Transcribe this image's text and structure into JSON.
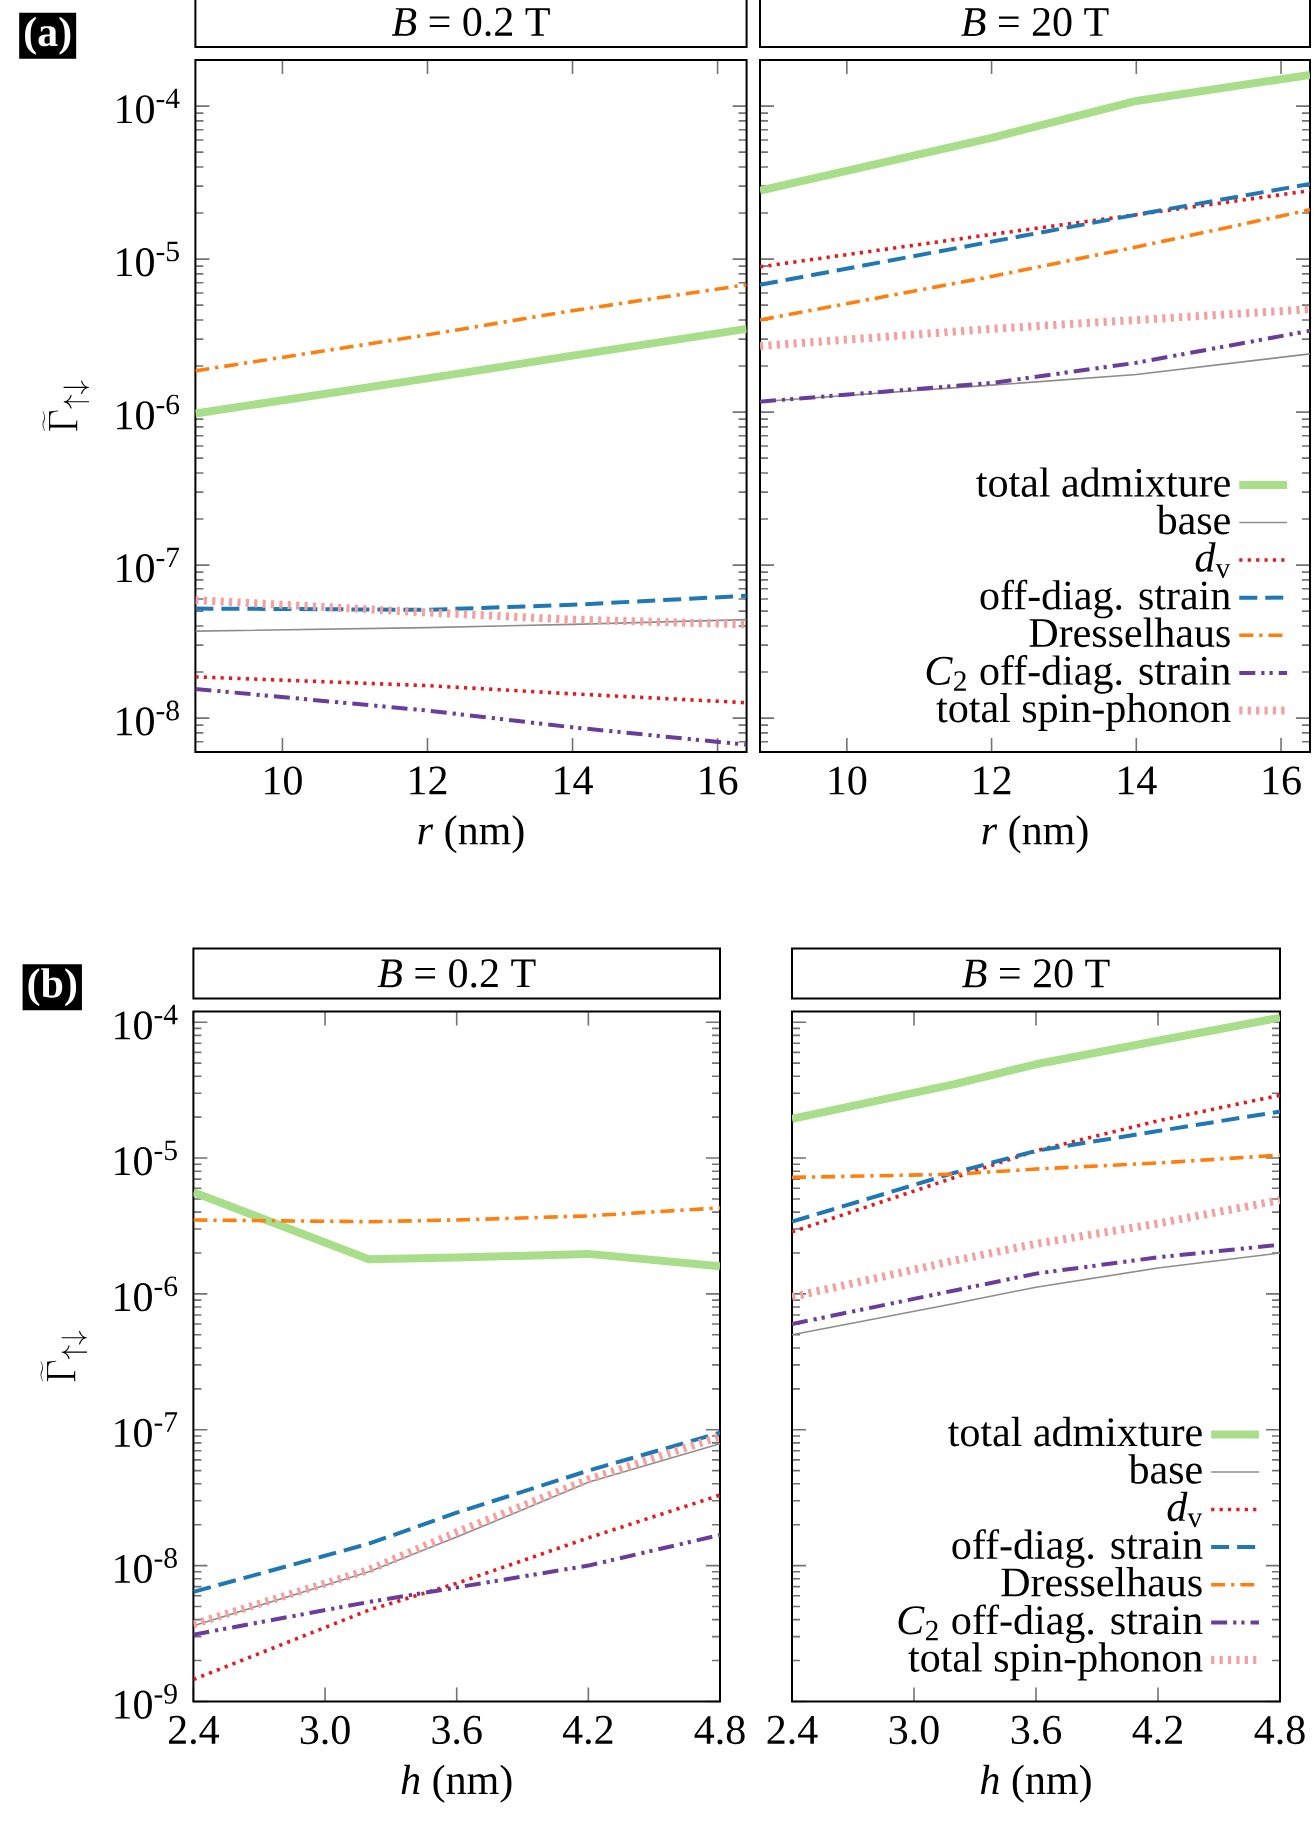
{
  "chart_data": [
    {
      "type": "line",
      "title": "*B* = 0.2 T",
      "xlabel": "*r* (nm)",
      "ylabel": "\\widetilde{\\Gamma}_{\\uparrow\\downarrow}",
      "annotations": [
        "(a)"
      ],
      "log": "y",
      "xlim": [
        8.8,
        16.4
      ],
      "ylim": [
        6e-09,
        0.0002
      ],
      "xticks": [
        10,
        12,
        14,
        16
      ],
      "yticks": [
        {
          "value": 0.0001,
          "label": "10$^{-4}$"
        },
        {
          "value": 1e-05,
          "label": "10$^{-5}$"
        },
        {
          "value": 1e-06,
          "label": "10$^{-6}$"
        },
        {
          "value": 1e-07,
          "label": "10$^{-7}$"
        },
        {
          "value": 1e-08,
          "label": "10$^{-8}$"
        }
      ],
      "x": [
        8.8,
        12,
        14,
        16.4
      ],
      "series": [
        {
          "color": "#a8dd8a",
          "line_style": "solid",
          "values": [
            9.8e-07,
            1.66e-06,
            2.34e-06,
            3.5e-06
          ]
        },
        {
          "color": "#8c8c8c",
          "line_style": "solid",
          "values": [
            3.7e-08,
            3.9e-08,
            4.1e-08,
            4.4e-08
          ]
        },
        {
          "color": "#e41a1c",
          "line_style": "dotted",
          "values": [
            1.86e-08,
            1.63e-08,
            1.44e-08,
            1.26e-08
          ]
        },
        {
          "color": "#1f78b4",
          "line_style": "dashed",
          "values": [
            5.2e-08,
            5.1e-08,
            5.5e-08,
            6.3e-08
          ]
        },
        {
          "color": "#ff7f0e",
          "line_style": "dashdot",
          "values": [
            1.86e-06,
            3.2e-06,
            4.6e-06,
            6.8e-06
          ]
        },
        {
          "color": "#6a3d9a",
          "line_style": "dashdotdot",
          "values": [
            1.55e-08,
            1.12e-08,
            8.7e-09,
            6.7e-09
          ]
        },
        {
          "color": "#f5a0a0",
          "line_style": "dotted",
          "values": [
            5.9e-08,
            4.9e-08,
            4.4e-08,
            4.1e-08
          ]
        }
      ]
    },
    {
      "type": "line",
      "title": "*B* = 20 T",
      "xlabel": "*r* (nm)",
      "log": "y",
      "tick_labels": "x",
      "legend": "bottom right",
      "xlim": [
        8.8,
        16.4
      ],
      "ylim": [
        6e-09,
        0.0002
      ],
      "xticks": [
        10,
        12,
        14,
        16
      ],
      "yticks": [
        {
          "value": 0.0001,
          "label": null
        },
        {
          "value": 1e-05,
          "label": null
        },
        {
          "value": 1e-06,
          "label": null
        },
        {
          "value": 1e-07,
          "label": null
        },
        {
          "value": 1e-08,
          "label": null
        }
      ],
      "x": [
        8.8,
        12,
        14,
        16.4
      ],
      "series": [
        {
          "name": "total admixture",
          "color": "#a8dd8a",
          "line_style": "solid",
          "values": [
            2.8e-05,
            6.2e-05,
            0.000108,
            0.00016
          ]
        },
        {
          "name": "base",
          "color": "#8c8c8c",
          "line_style": "solid",
          "values": [
            1.17e-06,
            1.5e-06,
            1.76e-06,
            2.4e-06
          ]
        },
        {
          "name": "*d*$_{v}$",
          "color": "#e41a1c",
          "line_style": "dotted",
          "values": [
            8.9e-06,
            1.45e-05,
            1.95e-05,
            2.8e-05
          ]
        },
        {
          "name": "off-diag. strain",
          "color": "#1f78b4",
          "line_style": "dashed",
          "values": [
            6.8e-06,
            1.3e-05,
            1.95e-05,
            3.1e-05
          ]
        },
        {
          "name": "Dresselhaus",
          "color": "#ff7f0e",
          "line_style": "dashdot",
          "values": [
            4e-06,
            7.7e-06,
            1.2e-05,
            2.1e-05
          ]
        },
        {
          "name": "*C*$_{2}$ off-diag. strain",
          "color": "#6a3d9a",
          "line_style": "dashdotdot",
          "values": [
            1.17e-06,
            1.55e-06,
            2.1e-06,
            3.4e-06
          ]
        },
        {
          "name": "total spin-phonon",
          "color": "#f5a0a0",
          "line_style": "dotted",
          "values": [
            2.7e-06,
            3.5e-06,
            4e-06,
            4.7e-06
          ]
        }
      ]
    },
    {
      "type": "line",
      "title": "*B* = 0.2 T",
      "xlabel": "*h* (nm)",
      "ylabel": "\\widetilde{\\Gamma}_{\\uparrow\\downarrow}",
      "annotations": [
        "(b)"
      ],
      "log": "y",
      "xlim": [
        2.4,
        4.8
      ],
      "ylim": [
        1e-09,
        0.00012
      ],
      "xticks": [
        2.4,
        {
          "value": 3,
          "label": "3.0"
        },
        3.6,
        4.2,
        4.8
      ],
      "yticks": [
        {
          "value": 0.0001,
          "label": "10$^{-4}$"
        },
        {
          "value": 1e-05,
          "label": "10$^{-5}$"
        },
        {
          "value": 1e-06,
          "label": "10$^{-6}$"
        },
        {
          "value": 1e-07,
          "label": "10$^{-7}$"
        },
        {
          "value": 1e-08,
          "label": "10$^{-8}$"
        },
        {
          "value": 1e-09,
          "label": "10$^{-9}$"
        }
      ],
      "x": [
        2.4,
        3.2,
        3.6,
        4.2,
        4.8
      ],
      "series": [
        {
          "color": "#a8dd8a",
          "line_style": "solid",
          "values": [
            5.6e-06,
            1.8e-06,
            1.85e-06,
            1.97e-06,
            1.6e-06
          ]
        },
        {
          "color": "#8c8c8c",
          "line_style": "solid",
          "values": [
            3.6e-09,
            9e-09,
            1.62e-08,
            4.1e-08,
            7.9e-08
          ]
        },
        {
          "color": "#e41a1c",
          "line_style": "dotted",
          "values": [
            1.45e-09,
            4.7e-09,
            7.4e-09,
            1.6e-08,
            3.3e-08
          ]
        },
        {
          "color": "#1f78b4",
          "line_style": "dashed",
          "values": [
            6.4e-09,
            1.45e-08,
            2.45e-08,
            5e-08,
            9.5e-08
          ]
        },
        {
          "color": "#ff7f0e",
          "line_style": "dashdot",
          "values": [
            3.5e-06,
            3.4e-06,
            3.5e-06,
            3.75e-06,
            4.3e-06
          ]
        },
        {
          "color": "#6a3d9a",
          "line_style": "dashdotdot",
          "values": [
            3.1e-09,
            5.4e-09,
            6.9e-09,
            1e-08,
            1.68e-08
          ]
        },
        {
          "color": "#f5a0a0",
          "line_style": "dotted",
          "values": [
            3.7e-09,
            9.3e-09,
            1.76e-08,
            4.3e-08,
            8.9e-08
          ]
        }
      ]
    },
    {
      "type": "line",
      "title": "*B* = 20 T",
      "xlabel": "*h* (nm)",
      "log": "y",
      "tick_labels": "x",
      "legend": "bottom right",
      "xlim": [
        2.4,
        4.8
      ],
      "ylim": [
        1e-09,
        0.00012
      ],
      "xticks": [
        2.4,
        {
          "value": 3,
          "label": "3.0"
        },
        3.6,
        4.2,
        4.8
      ],
      "yticks": [
        {
          "value": 0.0001,
          "label": null
        },
        {
          "value": 1e-05,
          "label": null
        },
        {
          "value": 1e-06,
          "label": null
        },
        {
          "value": 1e-07,
          "label": null
        },
        {
          "value": 1e-08,
          "label": null
        },
        {
          "value": 1e-09,
          "label": null
        }
      ],
      "x": [
        2.4,
        3.2,
        3.6,
        4.2,
        4.8
      ],
      "series": [
        {
          "name": "total admixture",
          "color": "#a8dd8a",
          "line_style": "solid",
          "values": [
            1.94e-05,
            3.5e-05,
            4.9e-05,
            7.3e-05,
            0.000108
          ]
        },
        {
          "name": "base",
          "color": "#8c8c8c",
          "line_style": "solid",
          "values": [
            5e-07,
            8.5e-07,
            1.12e-06,
            1.55e-06,
            2e-06
          ]
        },
        {
          "name": "*d*$_{v}$",
          "color": "#e41a1c",
          "line_style": "dotted",
          "values": [
            2.86e-06,
            7.2e-06,
            1.13e-05,
            1.88e-05,
            2.9e-05
          ]
        },
        {
          "name": "off-diag. strain",
          "color": "#1f78b4",
          "line_style": "dashed",
          "values": [
            3.4e-06,
            7.8e-06,
            1.13e-05,
            1.58e-05,
            2.2e-05
          ]
        },
        {
          "name": "Dresselhaus",
          "color": "#ff7f0e",
          "line_style": "dashdot",
          "values": [
            7.2e-06,
            7.6e-06,
            8.3e-06,
            9.2e-06,
            1.05e-05
          ]
        },
        {
          "name": "*C*$_{2}$ off-diag. strain",
          "color": "#6a3d9a",
          "line_style": "dashdotdot",
          "values": [
            6e-07,
            1.06e-06,
            1.41e-06,
            1.86e-06,
            2.3e-06
          ]
        },
        {
          "name": "total spin-phonon",
          "color": "#f5a0a0",
          "line_style": "dotted",
          "values": [
            9.5e-07,
            1.76e-06,
            2.34e-06,
            3.3e-06,
            4.9e-06
          ]
        }
      ]
    }
  ]
}
